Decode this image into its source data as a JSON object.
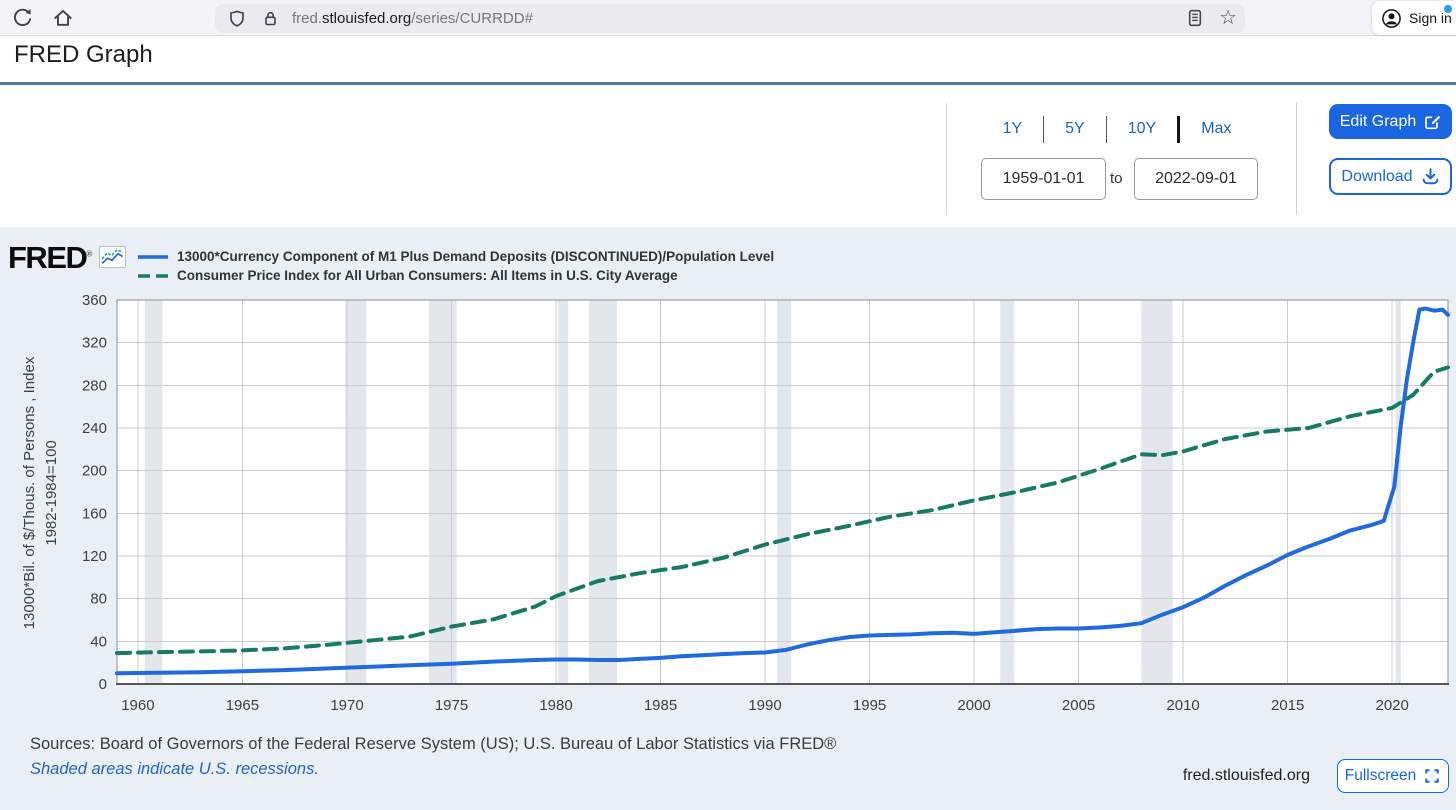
{
  "browser": {
    "url_prefix": "fred.",
    "url_domain": "stlouisfed.org",
    "url_path": "/series/CURRDD#",
    "sign_in_label": "Sign in"
  },
  "page": {
    "title": "FRED Graph"
  },
  "controls": {
    "ranges": [
      "1Y",
      "5Y",
      "10Y",
      "Max"
    ],
    "date_from": "1959-01-01",
    "to_label": "to",
    "date_to": "2022-09-01",
    "edit_graph_label": "Edit Graph",
    "download_label": "Download"
  },
  "chart_header": {
    "logo_text": "FRED",
    "logo_mark": "®"
  },
  "footer": {
    "sources": "Sources: Board of Governors of the Federal Reserve System (US); U.S. Bureau of Labor Statistics via FRED®",
    "recession_note": "Shaded areas indicate U.S. recessions.",
    "site": "fred.stlouisfed.org",
    "fullscreen_label": "Fullscreen"
  },
  "colors": {
    "accent_blue": "#1a66e0",
    "link_blue": "#1b62c9",
    "header_rule": "#4e7a9e",
    "widget_background": "#e9eff4",
    "series1_blue": "#2069df",
    "series2_green": "#177a65",
    "recession_gray": "#e3e7ec"
  },
  "chart_data": {
    "type": "line",
    "x_range": [
      1959.0,
      2022.67
    ],
    "ylim": [
      0,
      360
    ],
    "x_ticks": [
      1960,
      1965,
      1970,
      1975,
      1980,
      1985,
      1990,
      1995,
      2000,
      2005,
      2010,
      2015,
      2020
    ],
    "y_ticks": [
      0,
      40,
      80,
      120,
      160,
      200,
      240,
      280,
      320,
      360
    ],
    "ylabel_line1": "13000*Bil. of $/Thous. of Persons , Index",
    "ylabel_line2": "1982-1984=100",
    "grid": true,
    "legend_position": "top-left",
    "recession_color": "#e3e7ec",
    "recessions": [
      [
        1960.33,
        1961.17
      ],
      [
        1969.92,
        1970.92
      ],
      [
        1973.92,
        1975.25
      ],
      [
        1980.08,
        1980.58
      ],
      [
        1981.58,
        1982.92
      ],
      [
        1990.58,
        1991.25
      ],
      [
        2001.25,
        2001.92
      ],
      [
        2008.0,
        2009.5
      ],
      [
        2020.17,
        2020.42
      ]
    ],
    "series": [
      {
        "name": "13000*Currency Component of M1 Plus Demand Deposits (DISCONTINUED)/Population Level",
        "color": "#2069df",
        "style": "solid",
        "dash": null,
        "points": [
          [
            1959,
            10
          ],
          [
            1961,
            10.5
          ],
          [
            1963,
            11
          ],
          [
            1965,
            12
          ],
          [
            1967,
            13
          ],
          [
            1969,
            14.5
          ],
          [
            1971,
            16
          ],
          [
            1973,
            17.5
          ],
          [
            1975,
            19
          ],
          [
            1977,
            21
          ],
          [
            1979,
            22.5
          ],
          [
            1980,
            23
          ],
          [
            1981,
            23
          ],
          [
            1982,
            22.5
          ],
          [
            1983,
            22.5
          ],
          [
            1984,
            23.5
          ],
          [
            1985,
            24.5
          ],
          [
            1986,
            26
          ],
          [
            1987,
            27
          ],
          [
            1988,
            28
          ],
          [
            1989,
            29
          ],
          [
            1990,
            29.5
          ],
          [
            1991,
            32
          ],
          [
            1992,
            37
          ],
          [
            1993,
            41
          ],
          [
            1994,
            44
          ],
          [
            1995,
            45.5
          ],
          [
            1996,
            46
          ],
          [
            1997,
            46.5
          ],
          [
            1998,
            47.5
          ],
          [
            1999,
            48
          ],
          [
            2000,
            47
          ],
          [
            2001,
            48.5
          ],
          [
            2002,
            50
          ],
          [
            2003,
            51.5
          ],
          [
            2004,
            52
          ],
          [
            2005,
            52
          ],
          [
            2006,
            53
          ],
          [
            2007,
            54.5
          ],
          [
            2008,
            57
          ],
          [
            2009,
            65
          ],
          [
            2010,
            72
          ],
          [
            2011,
            81
          ],
          [
            2012,
            92
          ],
          [
            2013,
            102
          ],
          [
            2014,
            111
          ],
          [
            2015,
            121
          ],
          [
            2016,
            129
          ],
          [
            2017,
            136
          ],
          [
            2018,
            144
          ],
          [
            2019,
            149
          ],
          [
            2019.6,
            153
          ],
          [
            2020.1,
            185
          ],
          [
            2020.4,
            240
          ],
          [
            2020.7,
            285
          ],
          [
            2021.0,
            320
          ],
          [
            2021.3,
            351
          ],
          [
            2021.6,
            352
          ],
          [
            2022.0,
            350
          ],
          [
            2022.4,
            351
          ],
          [
            2022.67,
            346
          ]
        ]
      },
      {
        "name": "Consumer Price Index for All Urban Consumers: All Items in U.S. City Average",
        "color": "#177a65",
        "style": "dashed",
        "dash": "13 8",
        "points": [
          [
            1959,
            29
          ],
          [
            1961,
            29.9
          ],
          [
            1963,
            30.6
          ],
          [
            1965,
            31.5
          ],
          [
            1967,
            33.4
          ],
          [
            1969,
            36.7
          ],
          [
            1971,
            40.5
          ],
          [
            1973,
            44.4
          ],
          [
            1975,
            53.8
          ],
          [
            1977,
            60.6
          ],
          [
            1979,
            72.6
          ],
          [
            1980,
            82.4
          ],
          [
            1982,
            96.5
          ],
          [
            1984,
            103.9
          ],
          [
            1986,
            109.6
          ],
          [
            1988,
            118.3
          ],
          [
            1990,
            130.7
          ],
          [
            1992,
            140.3
          ],
          [
            1994,
            148.2
          ],
          [
            1996,
            156.9
          ],
          [
            1998,
            163.0
          ],
          [
            2000,
            172.2
          ],
          [
            2002,
            179.9
          ],
          [
            2004,
            188.9
          ],
          [
            2006,
            201.6
          ],
          [
            2008,
            215.3
          ],
          [
            2009,
            214.5
          ],
          [
            2010,
            218.1
          ],
          [
            2012,
            229.6
          ],
          [
            2014,
            236.7
          ],
          [
            2016,
            240.0
          ],
          [
            2018,
            251.1
          ],
          [
            2020,
            258.8
          ],
          [
            2021,
            271.0
          ],
          [
            2022,
            292.7
          ],
          [
            2022.67,
            296.8
          ]
        ]
      }
    ]
  }
}
